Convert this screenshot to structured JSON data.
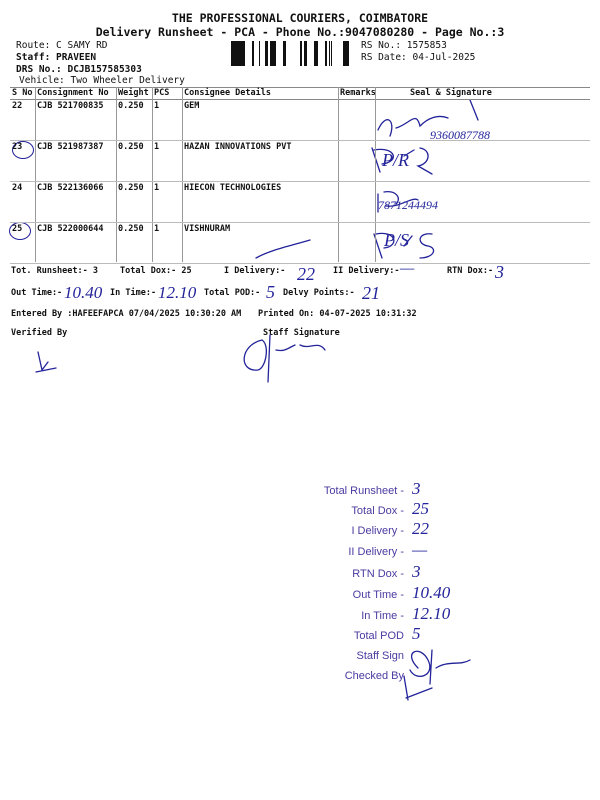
{
  "header": {
    "company": "THE PROFESSIONAL COURIERS, COIMBATORE",
    "subtitle": "Delivery Runsheet - PCA - Phone No.:9047080280 - Page No.:3",
    "route": "Route: C SAMY RD",
    "staff": "Staff: PRAVEEN",
    "drs_no": "DRS No.: DCJB157585303",
    "vehicle": "Vehicle: Two Wheeler Delivery",
    "rs_no": "RS No.: 1575853",
    "rs_date": "RS Date: 04-Jul-2025"
  },
  "table": {
    "columns": [
      "S No",
      "Consignment No",
      "Weight",
      "PCS",
      "Consignee Details",
      "Remarks",
      "Seal & Signature"
    ],
    "rows": [
      {
        "sno": "22",
        "consignment": "CJB 521700835",
        "weight": "0.250",
        "pcs": "1",
        "consignee": "GEM",
        "seal_note": "9360087788"
      },
      {
        "sno": "23",
        "consignment": "CJB 521987387",
        "weight": "0.250",
        "pcs": "1",
        "consignee": "HAZAN INNOVATIONS PVT",
        "seal_note": "P/R"
      },
      {
        "sno": "24",
        "consignment": "CJB 522136066",
        "weight": "0.250",
        "pcs": "1",
        "consignee": "HIECON TECHNOLOGIES",
        "seal_note": "7871244494"
      },
      {
        "sno": "25",
        "consignment": "CJB 522000644",
        "weight": "0.250",
        "pcs": "1",
        "consignee": "VISHNURAM",
        "seal_note": "P/S"
      }
    ]
  },
  "totals": {
    "tot_runsheet": "Tot. Runsheet:- 3",
    "total_dox": "Total Dox:-   25",
    "i_delivery_label": "I Delivery:-",
    "i_delivery_hw": "22",
    "ii_delivery_label": "II Delivery:-",
    "ii_delivery_hw": "—",
    "rtn_label": "RTN Dox:-",
    "rtn_hw": "3",
    "out_time_label": "Out Time:-",
    "out_time_hw": "10.40",
    "in_time_label": "In Time:-",
    "in_time_hw": "12.10",
    "total_pod_label": "Total POD:-",
    "total_pod_hw": "5",
    "delvy_points_label": "Delvy Points:-",
    "delvy_points_hw": "21",
    "entered_by": "Entered By :HAFEEFAPCA 07/04/2025 10:30:20 AM",
    "printed_on": "Printed On: 04-07-2025 10:31:32",
    "verified_by": "Verified By",
    "staff_signature": "Staff Signature"
  },
  "stamp": {
    "labels": [
      "Total Runsheet -",
      "Total Dox -",
      "I Delivery -",
      "II Delivery -",
      "RTN Dox -",
      "Out Time -",
      "In Time -",
      "Total POD",
      "Staff Sign",
      "Checked By"
    ],
    "values": [
      "3",
      "25",
      "22",
      "—",
      "3",
      "10.40",
      "12.10",
      "5",
      "",
      ""
    ]
  }
}
